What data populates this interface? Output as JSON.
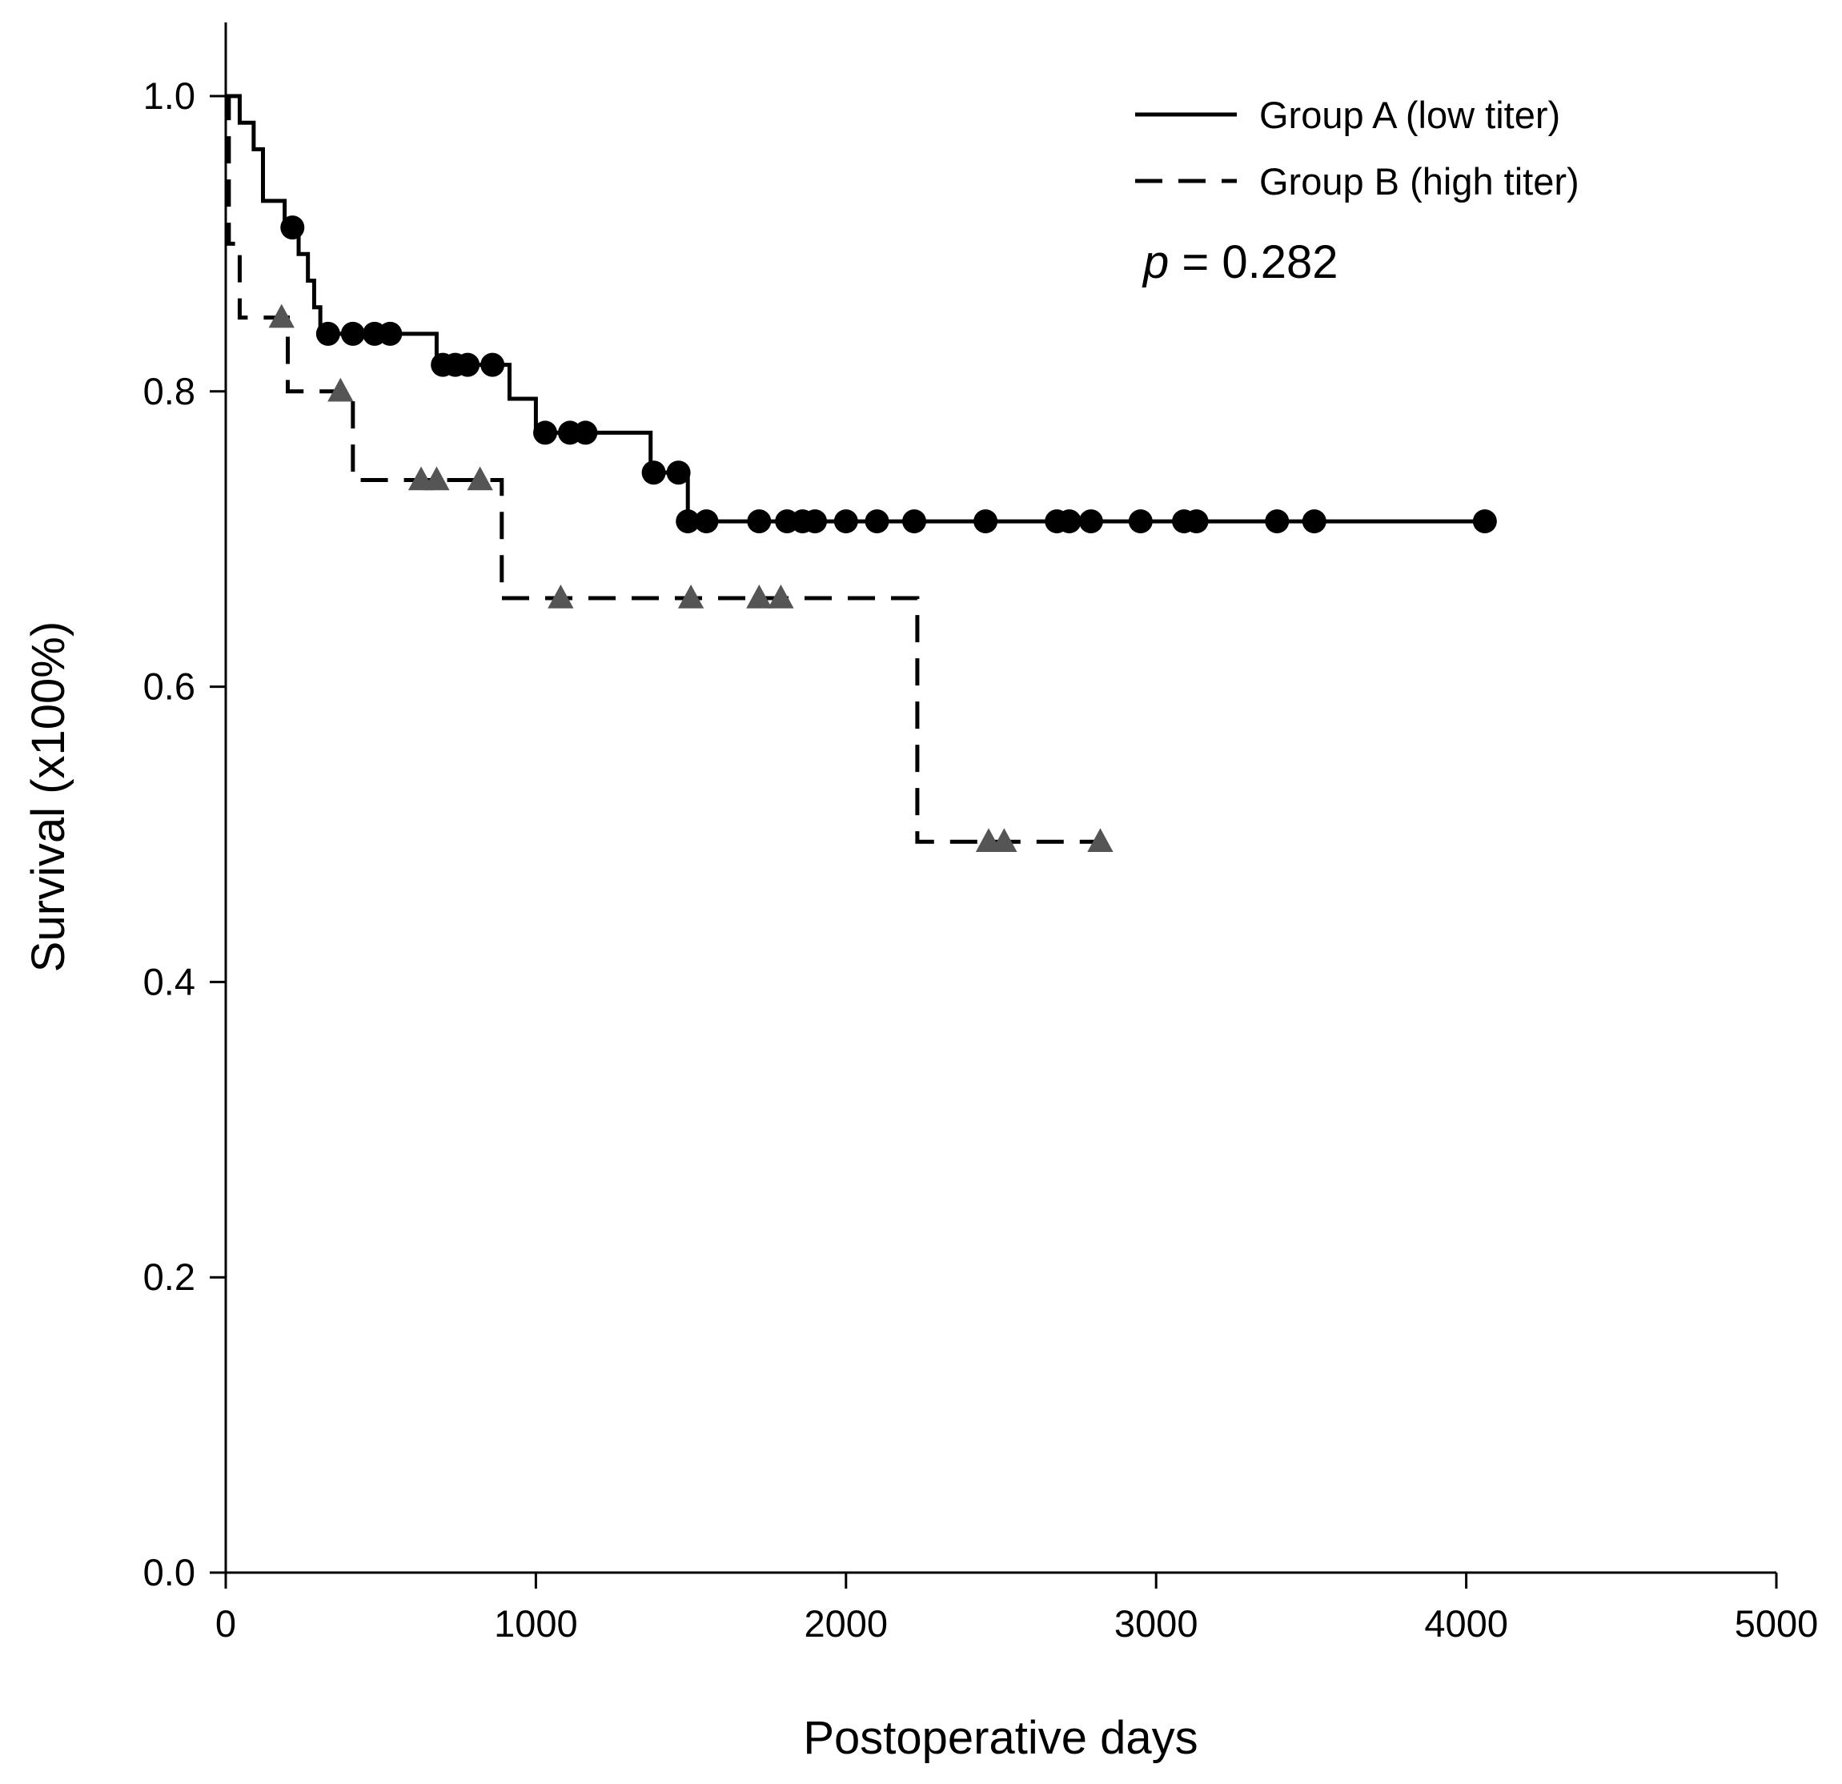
{
  "chart_data": {
    "type": "line",
    "subtype": "kaplan-meier step",
    "title": "",
    "xlabel": "Postoperative days",
    "ylabel": "Survival (x100%)",
    "xlim": [
      0,
      5000
    ],
    "ylim": [
      0,
      1.05
    ],
    "xticks": [
      0,
      1000,
      2000,
      3000,
      4000,
      5000
    ],
    "xtick_labels": [
      "0",
      "1000",
      "2000",
      "3000",
      "4000",
      "5000"
    ],
    "yticks": [
      0,
      0.2,
      0.4,
      0.6,
      0.8,
      1.0
    ],
    "ytick_labels": [
      "0.0",
      "0.2",
      "0.4",
      "0.6",
      "0.8",
      "1.0"
    ],
    "legend_position": "top-right",
    "annotation": {
      "italic": "p",
      "rest": " = 0.282"
    },
    "series": [
      {
        "name": "Group A (low titer)",
        "line_style": "solid",
        "marker": "circle",
        "marker_color": "#000000",
        "steps": [
          [
            0,
            1.0
          ],
          [
            45,
            0.982
          ],
          [
            90,
            0.964
          ],
          [
            120,
            0.929
          ],
          [
            190,
            0.911
          ],
          [
            235,
            0.893
          ],
          [
            265,
            0.875
          ],
          [
            285,
            0.857
          ],
          [
            305,
            0.839
          ],
          [
            680,
            0.818
          ],
          [
            915,
            0.795
          ],
          [
            1000,
            0.772
          ],
          [
            1370,
            0.745
          ],
          [
            1490,
            0.712
          ]
        ],
        "end_x": 4060,
        "censored": [
          [
            215,
            0.911
          ],
          [
            330,
            0.839
          ],
          [
            410,
            0.839
          ],
          [
            480,
            0.839
          ],
          [
            530,
            0.839
          ],
          [
            700,
            0.818
          ],
          [
            740,
            0.818
          ],
          [
            780,
            0.818
          ],
          [
            860,
            0.818
          ],
          [
            1030,
            0.772
          ],
          [
            1110,
            0.772
          ],
          [
            1160,
            0.772
          ],
          [
            1380,
            0.745
          ],
          [
            1460,
            0.745
          ],
          [
            1490,
            0.712
          ],
          [
            1550,
            0.712
          ],
          [
            1720,
            0.712
          ],
          [
            1810,
            0.712
          ],
          [
            1860,
            0.712
          ],
          [
            1900,
            0.712
          ],
          [
            2000,
            0.712
          ],
          [
            2100,
            0.712
          ],
          [
            2220,
            0.712
          ],
          [
            2450,
            0.712
          ],
          [
            2680,
            0.712
          ],
          [
            2720,
            0.712
          ],
          [
            2790,
            0.712
          ],
          [
            2950,
            0.712
          ],
          [
            3090,
            0.712
          ],
          [
            3130,
            0.712
          ],
          [
            3390,
            0.712
          ],
          [
            3510,
            0.712
          ],
          [
            4060,
            0.712
          ]
        ]
      },
      {
        "name": "Group B (high titer)",
        "line_style": "dashed",
        "marker": "triangle",
        "marker_color": "#555555",
        "steps": [
          [
            0,
            1.0
          ],
          [
            10,
            0.9
          ],
          [
            45,
            0.85
          ],
          [
            200,
            0.8
          ],
          [
            410,
            0.74
          ],
          [
            890,
            0.66
          ],
          [
            2230,
            0.495
          ]
        ],
        "end_x": 2820,
        "censored": [
          [
            180,
            0.85
          ],
          [
            370,
            0.8
          ],
          [
            630,
            0.74
          ],
          [
            680,
            0.74
          ],
          [
            820,
            0.74
          ],
          [
            1080,
            0.66
          ],
          [
            1500,
            0.66
          ],
          [
            1720,
            0.66
          ],
          [
            1790,
            0.66
          ],
          [
            2460,
            0.495
          ],
          [
            2510,
            0.495
          ],
          [
            2820,
            0.495
          ]
        ]
      }
    ]
  }
}
